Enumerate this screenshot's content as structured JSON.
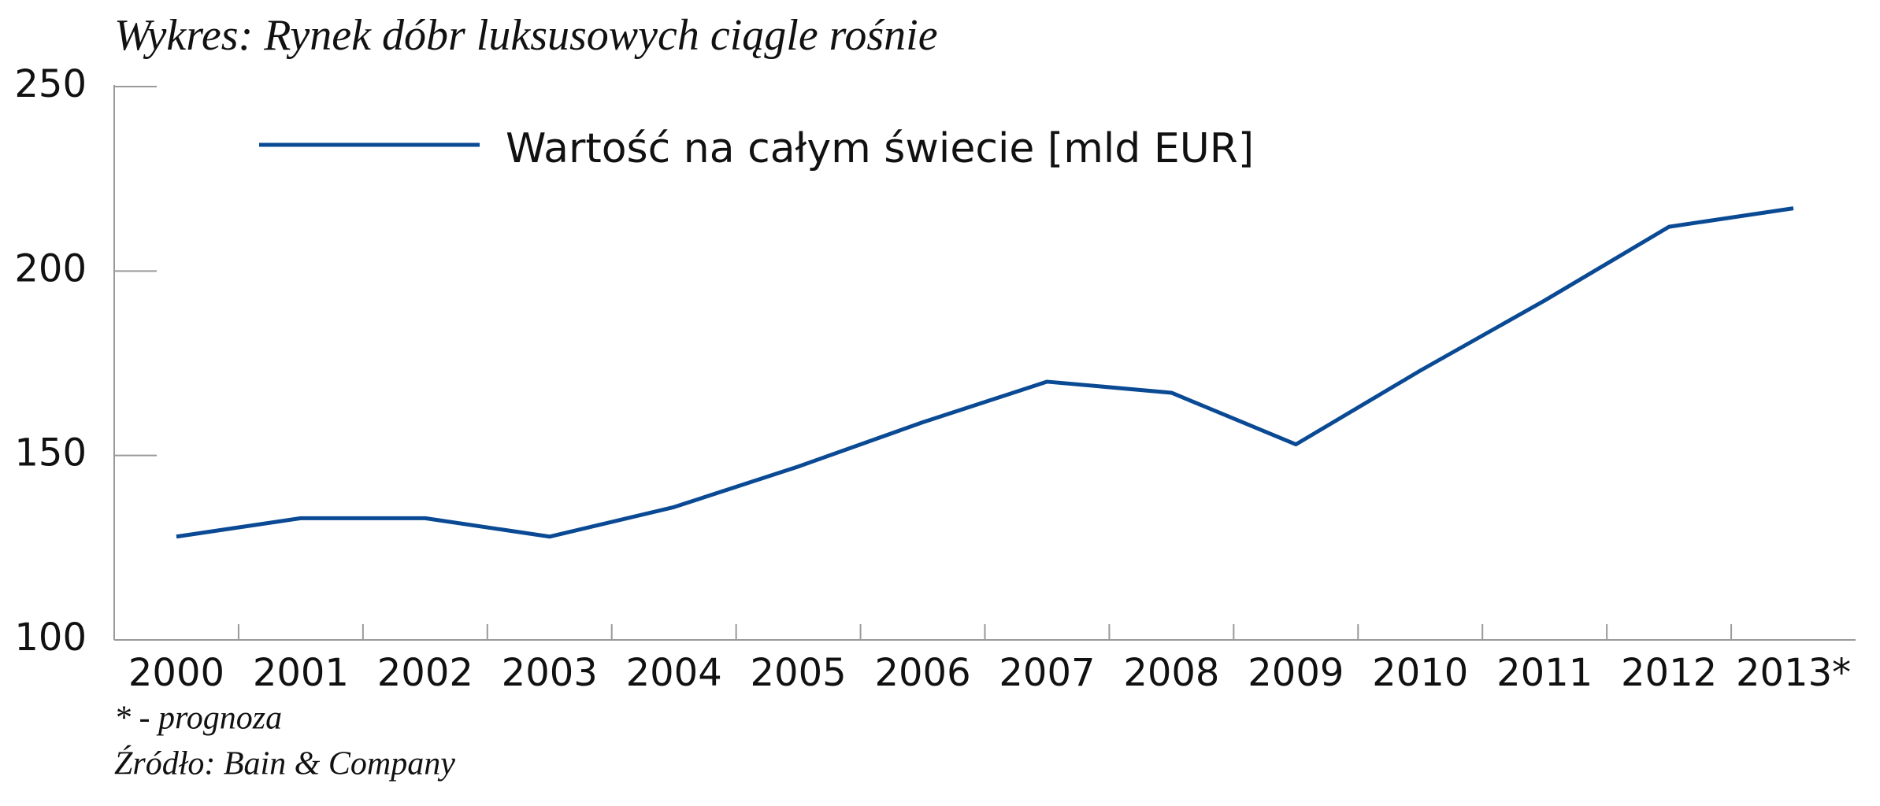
{
  "chart_data": {
    "type": "line",
    "title": "Wykres: Rynek dóbr luksusowych ciągle rośnie",
    "categories": [
      "2000",
      "2001",
      "2002",
      "2003",
      "2004",
      "2005",
      "2006",
      "2007",
      "2008",
      "2009",
      "2010",
      "2011",
      "2012",
      "2013*"
    ],
    "series": [
      {
        "name": "Wartość na całym świecie [mld EUR]",
        "color": "#0a4a94",
        "values": [
          128,
          133,
          133,
          128,
          136,
          147,
          159,
          170,
          167,
          153,
          173,
          192,
          212,
          217
        ]
      }
    ],
    "ylim": [
      100,
      250
    ],
    "yticks": [
      100,
      150,
      200,
      250
    ],
    "grid": false,
    "legend": "top-left",
    "note": "* - prognoza",
    "source": "Źródło: Bain & Company"
  }
}
